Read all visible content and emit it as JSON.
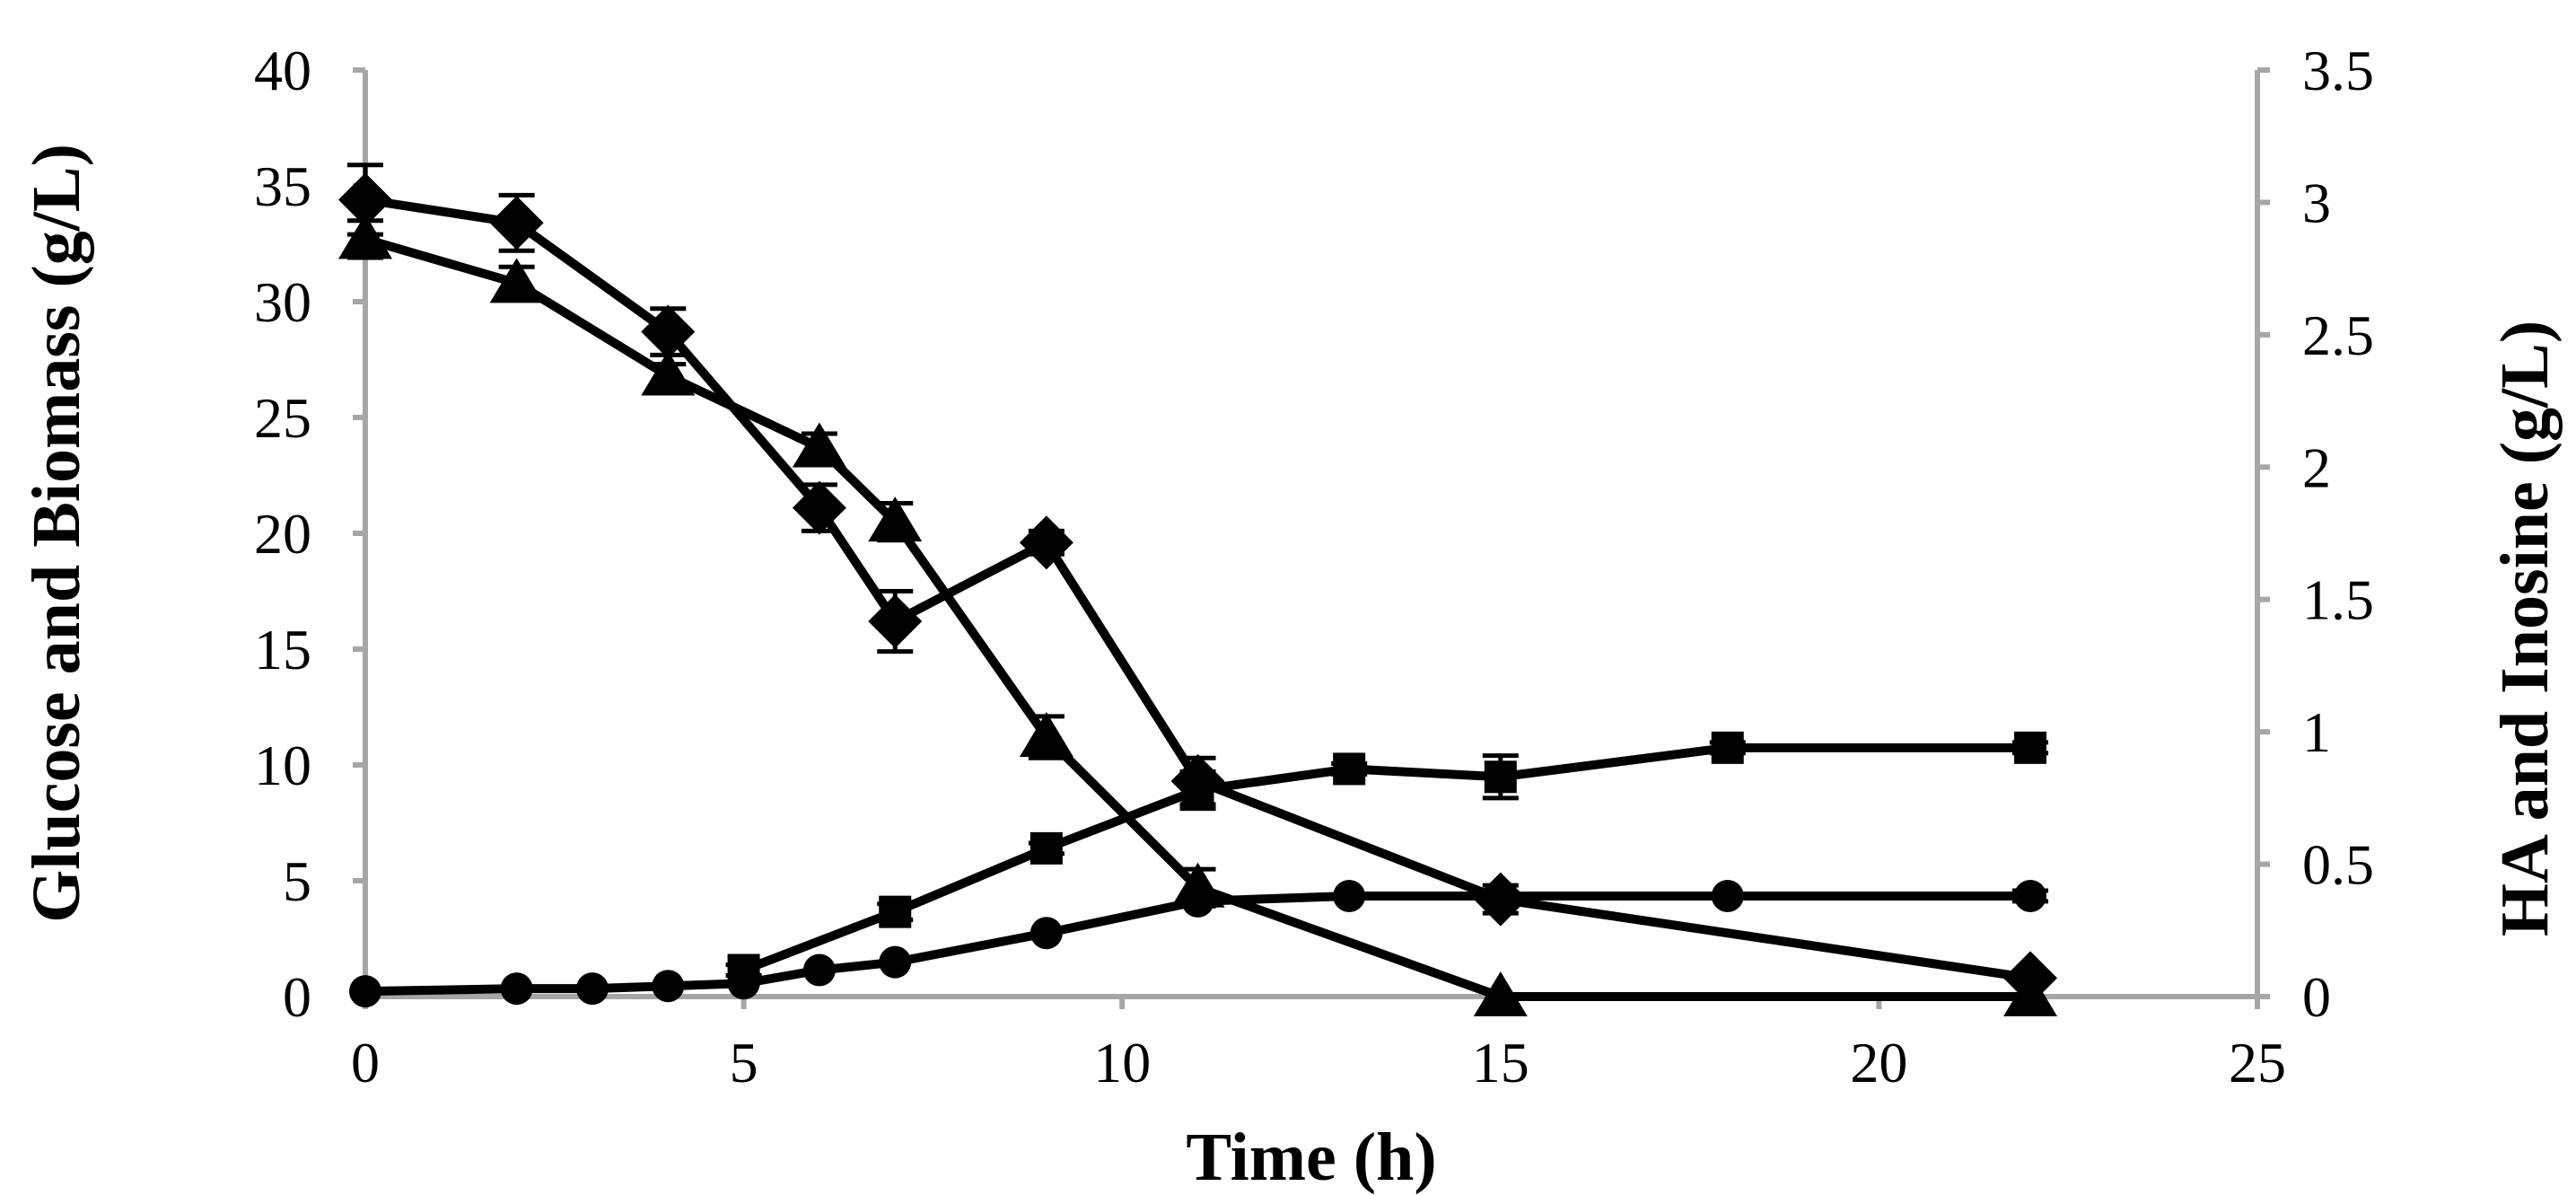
{
  "chart_data": {
    "type": "line",
    "title": "",
    "xlabel": "Time (h)",
    "ylabel": "Glucose and Biomass (g/L)",
    "y2label": "HA and Inosine (g/L)",
    "xlim": [
      0,
      25
    ],
    "ylim": [
      0,
      40
    ],
    "y2lim": [
      0,
      3.5
    ],
    "xticks": [
      0,
      5,
      10,
      15,
      20,
      25
    ],
    "yticks": [
      0,
      5,
      10,
      15,
      20,
      25,
      30,
      35,
      40
    ],
    "y2ticks": [
      0,
      0.5,
      1,
      1.5,
      2,
      2.5,
      3,
      3.5
    ],
    "xtick_labels": [
      "0",
      "5",
      "10",
      "15",
      "20",
      "25"
    ],
    "ytick_labels": [
      "0",
      "5",
      "10",
      "15",
      "20",
      "25",
      "30",
      "35",
      "40"
    ],
    "y2tick_labels": [
      "0",
      "0.5",
      "1",
      "1.5",
      "2",
      "2.5",
      "3",
      "3.5"
    ],
    "grid": false,
    "series": [
      {
        "name": "diamond",
        "marker": "diamond",
        "axis": "left",
        "x": [
          0,
          2,
          4,
          6,
          7,
          9,
          11,
          15,
          22
        ],
        "y": [
          34.4,
          33.4,
          28.7,
          21.1,
          16.2,
          19.6,
          9.3,
          4.2,
          0.8
        ],
        "err": [
          1.5,
          1.2,
          1.0,
          1.0,
          1.3,
          0.5,
          1.0,
          0.6,
          0.3
        ]
      },
      {
        "name": "triangle",
        "marker": "triangle",
        "axis": "left",
        "x": [
          0,
          2,
          4,
          6,
          7,
          9,
          11,
          15,
          22
        ],
        "y": [
          32.7,
          30.8,
          26.8,
          23.7,
          20.5,
          11.2,
          4.7,
          0,
          0
        ],
        "err": [
          0.8,
          0.7,
          0.5,
          0.6,
          0.8,
          0.9,
          0.8,
          0,
          0
        ]
      },
      {
        "name": "square",
        "marker": "square",
        "axis": "right",
        "x": [
          5,
          7,
          9,
          11,
          13,
          15,
          18,
          22
        ],
        "y": [
          0.1,
          0.32,
          0.56,
          0.78,
          0.86,
          0.83,
          0.94,
          0.94
        ],
        "err": [
          0.02,
          0.03,
          0.02,
          0.07,
          0.02,
          0.08,
          0.02,
          0.02
        ]
      },
      {
        "name": "circle",
        "marker": "circle",
        "axis": "right",
        "x": [
          0,
          2,
          3,
          4,
          5,
          6,
          7,
          9,
          11,
          13,
          15,
          18,
          22
        ],
        "y": [
          0.02,
          0.03,
          0.03,
          0.04,
          0.05,
          0.1,
          0.13,
          0.24,
          0.36,
          0.38,
          0.38,
          0.38,
          0.38
        ],
        "err": [
          0,
          0,
          0,
          0,
          0,
          0,
          0,
          0,
          0,
          0,
          0.01,
          0,
          0.02
        ]
      }
    ]
  }
}
